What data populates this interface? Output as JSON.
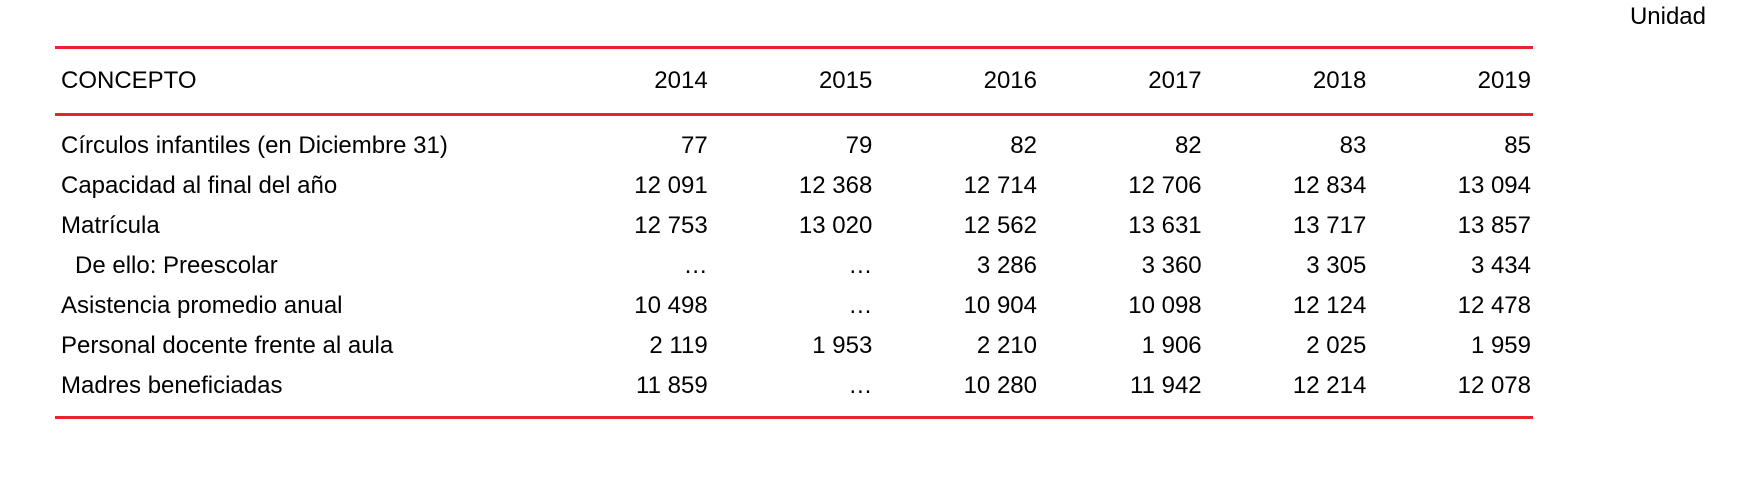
{
  "unit_label": "Unidad",
  "colors": {
    "rule": "#e8242a"
  },
  "table": {
    "headers": [
      "CONCEPTO",
      "2014",
      "2015",
      "2016",
      "2017",
      "2018",
      "2019"
    ],
    "rows": [
      {
        "concept": "Círculos infantiles (en Diciembre 31)",
        "values": [
          "77",
          "79",
          "82",
          "82",
          "83",
          "85"
        ]
      },
      {
        "concept": "Capacidad al final del año",
        "values": [
          "12 091",
          "12 368",
          "12 714",
          "12 706",
          "12 834",
          "13 094"
        ]
      },
      {
        "concept": "Matrícula",
        "values": [
          "12 753",
          "13 020",
          "12 562",
          "13 631",
          "13 717",
          "13 857"
        ]
      },
      {
        "concept": "De ello: Preescolar",
        "indent": true,
        "values": [
          "…",
          "…",
          "3 286",
          "3 360",
          "3 305",
          "3 434"
        ]
      },
      {
        "concept": "Asistencia promedio anual",
        "values": [
          "10 498",
          "…",
          "10 904",
          "10 098",
          "12 124",
          "12 478"
        ]
      },
      {
        "concept": "Personal docente frente al aula",
        "values": [
          "2 119",
          "1 953",
          "2 210",
          "1 906",
          "2 025",
          "1 959"
        ]
      },
      {
        "concept": "Madres beneficiadas",
        "values": [
          "11 859",
          "…",
          "10 280",
          "11 942",
          "12 214",
          "12 078"
        ]
      }
    ]
  }
}
